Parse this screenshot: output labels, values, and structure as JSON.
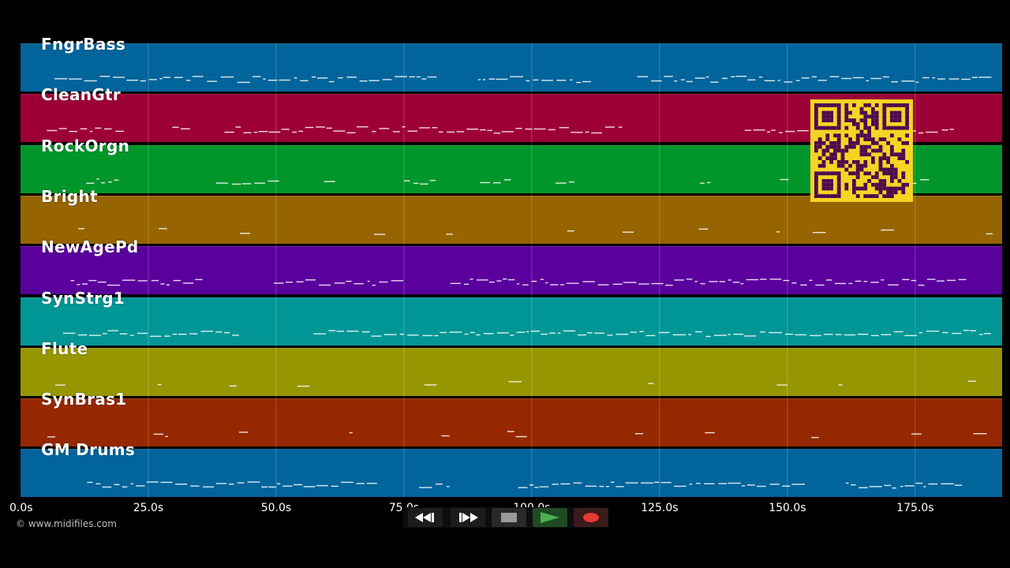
{
  "tracks": [
    {
      "name": "FngrBass",
      "color": "#01649b"
    },
    {
      "name": "CleanGtr",
      "color": "#9d0036"
    },
    {
      "name": "RockOrgn",
      "color": "#00962a"
    },
    {
      "name": "Bright",
      "color": "#966400"
    },
    {
      "name": "NewAgePd",
      "color": "#5a009d"
    },
    {
      "name": "SynStrg1",
      "color": "#009696"
    },
    {
      "name": "Flute",
      "color": "#969600"
    },
    {
      "name": "SynBras1",
      "color": "#962800"
    },
    {
      "name": "GM Drums",
      "color": "#01649b"
    }
  ],
  "time_axis": {
    "unit": "s",
    "max": 192,
    "ticks": [
      {
        "value": 0,
        "label": "0.0s"
      },
      {
        "value": 25,
        "label": "25.0s"
      },
      {
        "value": 50,
        "label": "50.0s"
      },
      {
        "value": 75,
        "label": "75.0s"
      },
      {
        "value": 100,
        "label": "100.0s"
      },
      {
        "value": 125,
        "label": "125.0s"
      },
      {
        "value": 150,
        "label": "150.0s"
      },
      {
        "value": 175,
        "label": "175.0s"
      }
    ]
  },
  "copyright": "© www.midifiles.com",
  "transport": {
    "rewind_icon": "rewind-icon",
    "fast_forward_icon": "fast-forward-icon",
    "stop_icon": "stop-icon",
    "play_icon": "play-icon",
    "record_icon": "record-icon",
    "play_color": "#4caf50",
    "record_color": "#e53935"
  },
  "qr_colors": {
    "background": "#f5d423",
    "modules": "#4b0b4e"
  }
}
